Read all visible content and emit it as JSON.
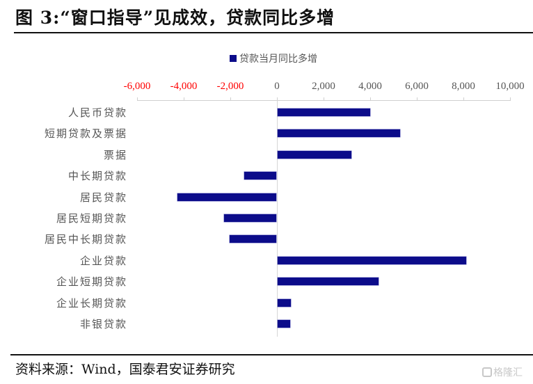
{
  "header": {
    "title": "图 3:“窗口指导”见成效，贷款同比多增"
  },
  "footer": {
    "source": "资料来源：Wind，国泰君安证券研究",
    "watermark": "格隆汇",
    "watermark_icon": "gelonghui-logo-icon"
  },
  "colors": {
    "bar": "#0c0c8a",
    "negative_tick": "#ff0000",
    "positive_tick": "#555555",
    "axis": "#cfcfcf"
  },
  "chart_data": {
    "type": "bar",
    "orientation": "horizontal",
    "title": "",
    "xlabel": "",
    "ylabel": "",
    "legend": {
      "position": "top",
      "entries": [
        "贷款当月同比多增"
      ]
    },
    "xlim": [
      -6000,
      10000
    ],
    "x_ticks": [
      "-6,000",
      "-4,000",
      "-2,000",
      "0",
      "2,000",
      "4,000",
      "6,000",
      "8,000",
      "10,000"
    ],
    "x_tick_values": [
      -6000,
      -4000,
      -2000,
      0,
      2000,
      4000,
      6000,
      8000,
      10000
    ],
    "x_axis_position": "top",
    "grid": false,
    "categories": [
      "人民币贷款",
      "短期贷款及票据",
      "票据",
      "中长期贷款",
      "居民贷款",
      "居民短期贷款",
      "居民中长期贷款",
      "企业贷款",
      "企业短期贷款",
      "企业长期贷款",
      "非银贷款"
    ],
    "series": [
      {
        "name": "贷款当月同比多增",
        "values": [
          4000,
          5280,
          3200,
          -1400,
          -4270,
          -2270,
          -2030,
          8120,
          4360,
          600,
          570
        ]
      }
    ]
  }
}
